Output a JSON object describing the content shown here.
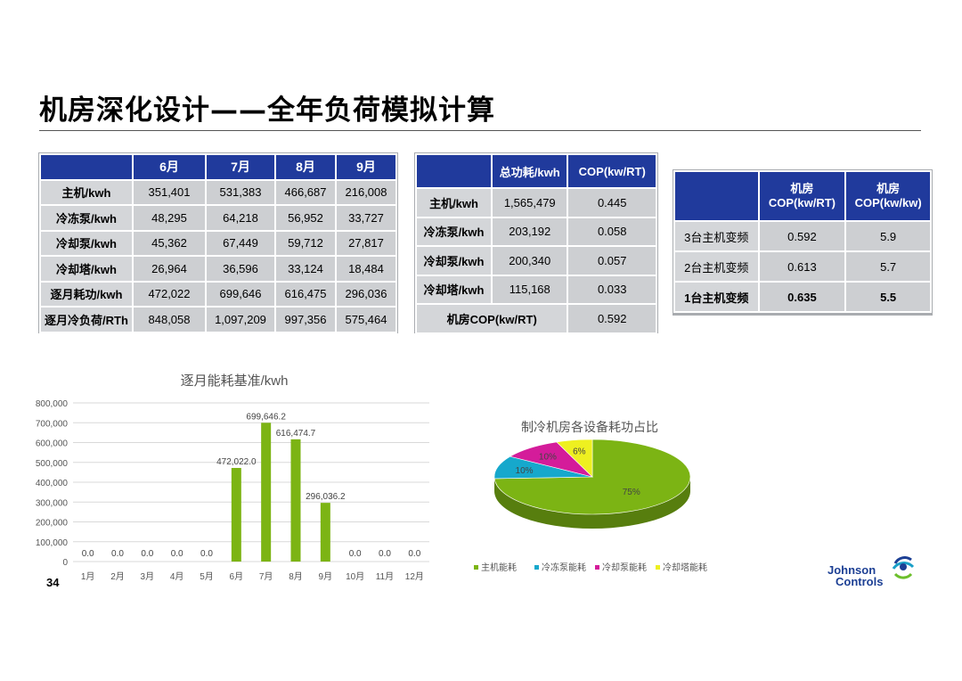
{
  "title": "机房深化设计——全年负荷模拟计算",
  "monthly_table": {
    "headers": [
      "",
      "6月",
      "7月",
      "8月",
      "9月"
    ],
    "rows": [
      {
        "label": "主机/kwh",
        "values": [
          "351,401",
          "531,383",
          "466,687",
          "216,008"
        ]
      },
      {
        "label": "冷冻泵/kwh",
        "values": [
          "48,295",
          "64,218",
          "56,952",
          "33,727"
        ]
      },
      {
        "label": "冷却泵/kwh",
        "values": [
          "45,362",
          "67,449",
          "59,712",
          "27,817"
        ]
      },
      {
        "label": "冷却塔/kwh",
        "values": [
          "26,964",
          "36,596",
          "33,124",
          "18,484"
        ]
      },
      {
        "label": "逐月耗功/kwh",
        "values": [
          "472,022",
          "699,646",
          "616,475",
          "296,036"
        ]
      },
      {
        "label": "逐月冷负荷/RTh",
        "values": [
          "848,058",
          "1,097,209",
          "997,356",
          "575,464"
        ]
      }
    ]
  },
  "power_table": {
    "headers": [
      "",
      "总功耗/kwh",
      "COP(kw/RT)"
    ],
    "rows": [
      {
        "label": "主机/kwh",
        "values": [
          "1,565,479",
          "0.445"
        ]
      },
      {
        "label": "冷冻泵/kwh",
        "values": [
          "203,192",
          "0.058"
        ]
      },
      {
        "label": "冷却泵/kwh",
        "values": [
          "200,340",
          "0.057"
        ]
      },
      {
        "label": "冷却塔/kwh",
        "values": [
          "115,168",
          "0.033"
        ]
      }
    ],
    "total": {
      "label": "机房COP(kw/RT)",
      "value": "0.592"
    }
  },
  "cop_table": {
    "headers": [
      "",
      "机房\nCOP(kw/RT)",
      "机房\nCOP(kw/kw)"
    ],
    "header_lines": [
      [
        "机房",
        "COP(kw/RT)"
      ],
      [
        "机房",
        "COP(kw/kw)"
      ]
    ],
    "rows": [
      {
        "label": "3台主机变频",
        "values": [
          "0.592",
          "5.9"
        ]
      },
      {
        "label": "2台主机变频",
        "values": [
          "0.613",
          "5.7"
        ]
      },
      {
        "label": "1台主机变频",
        "values": [
          "0.635",
          "5.5"
        ]
      }
    ]
  },
  "chart_data": [
    {
      "type": "bar",
      "title": "逐月能耗基准/kwh",
      "categories": [
        "1月",
        "2月",
        "3月",
        "4月",
        "5月",
        "6月",
        "7月",
        "8月",
        "9月",
        "10月",
        "11月",
        "12月"
      ],
      "values": [
        0,
        0,
        0,
        0,
        0,
        472022.0,
        699646.2,
        616474.7,
        296036.2,
        0,
        0,
        0
      ],
      "data_labels": [
        "0.0",
        "0.0",
        "0.0",
        "0.0",
        "0.0",
        "472,022.0",
        "699,646.2",
        "616,474.7",
        "296,036.2",
        "0.0",
        "0.0",
        "0.0"
      ],
      "ylim": [
        0,
        800000
      ],
      "yticks": [
        0,
        100000,
        200000,
        300000,
        400000,
        500000,
        600000,
        700000,
        800000
      ],
      "ytick_labels": [
        "0",
        "100,000",
        "200,000",
        "300,000",
        "400,000",
        "500,000",
        "600,000",
        "700,000",
        "800,000"
      ],
      "grid": true,
      "color": "#7cb414"
    },
    {
      "type": "pie",
      "title": "制冷机房各设备耗功占比",
      "labels": [
        "主机能耗",
        "冷冻泵能耗",
        "冷却泵能耗",
        "冷却塔能耗"
      ],
      "values": [
        75,
        10,
        10,
        6
      ],
      "data_labels": [
        "75%",
        "10%",
        "10%",
        "6%"
      ],
      "colors": [
        "#7cb414",
        "#16a8cc",
        "#d41c9a",
        "#eef020"
      ],
      "legend": "bottom"
    }
  ],
  "page_number": "34",
  "logo": {
    "line1": "Johnson",
    "line2": "Controls"
  }
}
